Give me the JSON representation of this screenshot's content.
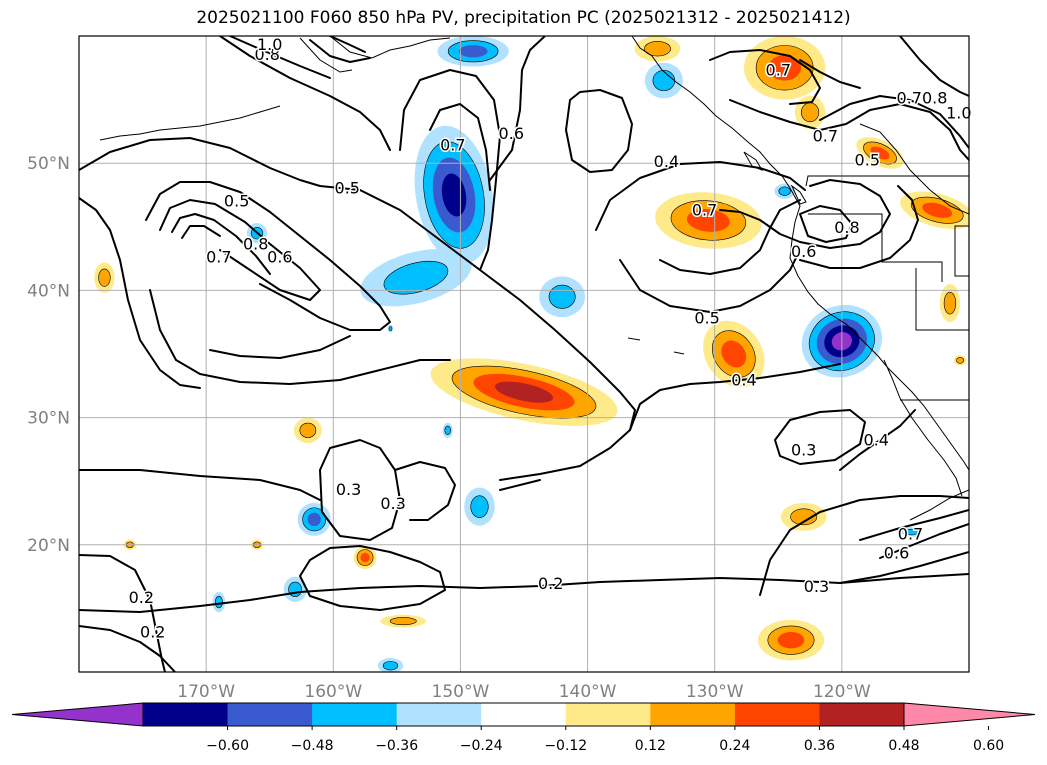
{
  "title": "2025021100 F060 850 hPa PV, precipitation PC (2025021312 - 2025021412)",
  "map": {
    "lon_min": -180,
    "lon_max": -110,
    "lat_min": 10,
    "lat_max": 60,
    "lat_labels": [
      "20°N",
      "30°N",
      "40°N",
      "50°N"
    ],
    "lat_values": [
      20,
      30,
      40,
      50
    ],
    "lon_labels": [
      "170°W",
      "160°W",
      "150°W",
      "140°W",
      "130°W",
      "120°W"
    ],
    "lon_values": [
      -170,
      -160,
      -150,
      -140,
      -130,
      -120
    ]
  },
  "contour_labels": [
    {
      "text": "0.2",
      "lon": -142.9,
      "lat": 16.9
    },
    {
      "text": "0.2",
      "lon": -175.1,
      "lat": 15.8
    },
    {
      "text": "0.2",
      "lon": -174.2,
      "lat": 13.1
    },
    {
      "text": "0.3",
      "lon": -155.3,
      "lat": 23.2
    },
    {
      "text": "0.3",
      "lon": -158.8,
      "lat": 24.3
    },
    {
      "text": "0.3",
      "lon": -122.0,
      "lat": 16.7
    },
    {
      "text": "0.3",
      "lon": -123.0,
      "lat": 27.4
    },
    {
      "text": "0.4",
      "lon": -117.3,
      "lat": 28.2
    },
    {
      "text": "0.4",
      "lon": -127.7,
      "lat": 32.9
    },
    {
      "text": "0.4",
      "lon": -133.8,
      "lat": 50.1
    },
    {
      "text": "0.5",
      "lon": -130.6,
      "lat": 37.8
    },
    {
      "text": "0.5",
      "lon": -167.6,
      "lat": 47.0
    },
    {
      "text": "0.5",
      "lon": -158.9,
      "lat": 48.0
    },
    {
      "text": "0.5",
      "lon": -118.0,
      "lat": 50.2
    },
    {
      "text": "0.6",
      "lon": -164.2,
      "lat": 42.6
    },
    {
      "text": "0.6",
      "lon": -123.0,
      "lat": 43.0
    },
    {
      "text": "0.6",
      "lon": -115.7,
      "lat": 19.3
    },
    {
      "text": "0.6",
      "lon": -146.0,
      "lat": 52.3
    },
    {
      "text": "0.7",
      "lon": -169.0,
      "lat": 42.6
    },
    {
      "text": "0.7",
      "lon": -130.8,
      "lat": 46.3
    },
    {
      "text": "0.7",
      "lon": -114.6,
      "lat": 20.8
    },
    {
      "text": "0.7",
      "lon": -125.0,
      "lat": 57.3
    },
    {
      "text": "0.7",
      "lon": -121.3,
      "lat": 52.1
    },
    {
      "text": "0.7",
      "lon": -114.7,
      "lat": 55.1
    },
    {
      "text": "0.7",
      "lon": -150.6,
      "lat": 51.4
    },
    {
      "text": "0.8",
      "lon": -166.1,
      "lat": 43.6
    },
    {
      "text": "0.8",
      "lon": -119.6,
      "lat": 44.9
    },
    {
      "text": "0.8",
      "lon": -112.7,
      "lat": 55.1
    },
    {
      "text": "0.8",
      "lon": -165.2,
      "lat": 58.5
    },
    {
      "text": "1.0",
      "lon": -110.8,
      "lat": 53.9
    },
    {
      "text": "1.0",
      "lon": -165.0,
      "lat": 59.3
    }
  ],
  "colorbar": {
    "ticks": [
      "−0.60",
      "−0.48",
      "−0.36",
      "−0.24",
      "−0.12",
      "0.12",
      "0.24",
      "0.36",
      "0.48",
      "0.60"
    ],
    "colors": [
      "#9333cc",
      "#00008b",
      "#3a5bd0",
      "#00bfff",
      "#b0e2ff",
      "#ffffff",
      "#ffea8a",
      "#ffa500",
      "#ff4500",
      "#b22222",
      "#ff88a8"
    ],
    "under_color": "#9333cc",
    "over_color": "#ff88a8"
  },
  "precip_colors": {
    "p1": "#ffea8a",
    "p2": "#ffa500",
    "p3": "#ff4500",
    "p4": "#b22222",
    "n1": "#b0e2ff",
    "n2": "#00bfff",
    "n3": "#3a5bd0",
    "n4": "#00008b",
    "n5": "#9333cc"
  },
  "precip_blobs": [
    {
      "lon": -145.0,
      "lat": 32.0,
      "rx": 7.5,
      "ry": 2.2,
      "rot": 12,
      "levels": [
        "p1",
        "p2",
        "p3",
        "p4"
      ]
    },
    {
      "lon": -130.5,
      "lat": 45.5,
      "rx": 4.2,
      "ry": 2.2,
      "rot": 5,
      "levels": [
        "p1",
        "p2",
        "p3"
      ]
    },
    {
      "lon": -124.5,
      "lat": 57.5,
      "rx": 3.2,
      "ry": 2.5,
      "rot": 0,
      "levels": [
        "p1",
        "p2",
        "p3"
      ]
    },
    {
      "lon": -128.5,
      "lat": 35.0,
      "rx": 2.2,
      "ry": 2.8,
      "rot": -35,
      "levels": [
        "p1",
        "p2",
        "p3"
      ]
    },
    {
      "lon": -124.0,
      "lat": 12.5,
      "rx": 2.6,
      "ry": 1.6,
      "rot": 0,
      "levels": [
        "p1",
        "p2",
        "p3"
      ]
    },
    {
      "lon": -123.0,
      "lat": 22.2,
      "rx": 1.8,
      "ry": 1.1,
      "rot": 0,
      "levels": [
        "p1",
        "p2"
      ]
    },
    {
      "lon": -112.5,
      "lat": 46.3,
      "rx": 3.0,
      "ry": 1.3,
      "rot": 15,
      "levels": [
        "p1",
        "p2",
        "p3"
      ]
    },
    {
      "lon": -117.0,
      "lat": 50.8,
      "rx": 2.0,
      "ry": 1.0,
      "rot": 25,
      "levels": [
        "p1",
        "p2",
        "p3"
      ]
    },
    {
      "lon": -122.5,
      "lat": 54.0,
      "rx": 1.2,
      "ry": 1.3,
      "rot": 0,
      "levels": [
        "p1",
        "p2"
      ]
    },
    {
      "lon": -134.5,
      "lat": 59.0,
      "rx": 1.8,
      "ry": 1.0,
      "rot": 0,
      "levels": [
        "p1",
        "p2"
      ]
    },
    {
      "lon": -162.0,
      "lat": 29.0,
      "rx": 1.1,
      "ry": 1.0,
      "rot": 0,
      "levels": [
        "p1",
        "p2"
      ]
    },
    {
      "lon": -157.5,
      "lat": 19.0,
      "rx": 0.9,
      "ry": 0.9,
      "rot": 0,
      "levels": [
        "p1",
        "p2",
        "p3"
      ]
    },
    {
      "lon": -154.5,
      "lat": 14.0,
      "rx": 1.8,
      "ry": 0.5,
      "rot": 0,
      "levels": [
        "p1",
        "p2"
      ]
    },
    {
      "lon": -111.5,
      "lat": 39.0,
      "rx": 0.8,
      "ry": 1.5,
      "rot": 0,
      "levels": [
        "p1",
        "p2"
      ]
    },
    {
      "lon": -178.0,
      "lat": 41.0,
      "rx": 0.8,
      "ry": 1.2,
      "rot": 0,
      "levels": [
        "p1",
        "p2"
      ]
    },
    {
      "lon": -176.0,
      "lat": 20.0,
      "rx": 0.5,
      "ry": 0.4,
      "rot": 0,
      "levels": [
        "p1",
        "p2"
      ]
    },
    {
      "lon": -166.0,
      "lat": 20.0,
      "rx": 0.5,
      "ry": 0.4,
      "rot": 0,
      "levels": [
        "p1",
        "p2"
      ]
    },
    {
      "lon": -110.7,
      "lat": 34.5,
      "rx": 0.5,
      "ry": 0.4,
      "rot": 0,
      "levels": [
        "p1",
        "p2"
      ]
    },
    {
      "lon": -150.5,
      "lat": 47.5,
      "rx": 3.0,
      "ry": 5.5,
      "rot": -10,
      "levels": [
        "n1",
        "n2",
        "n3",
        "n4"
      ]
    },
    {
      "lon": -120.0,
      "lat": 36.0,
      "rx": 3.2,
      "ry": 2.8,
      "rot": -20,
      "levels": [
        "n1",
        "n2",
        "n3",
        "n4",
        "n5"
      ]
    },
    {
      "lon": -153.5,
      "lat": 41.0,
      "rx": 4.5,
      "ry": 2.0,
      "rot": -15,
      "levels": [
        "n1",
        "n2"
      ]
    },
    {
      "lon": -142.0,
      "lat": 39.5,
      "rx": 1.8,
      "ry": 1.6,
      "rot": 0,
      "levels": [
        "n1",
        "n2"
      ]
    },
    {
      "lon": -149.0,
      "lat": 58.8,
      "rx": 2.8,
      "ry": 1.2,
      "rot": 0,
      "levels": [
        "n1",
        "n2",
        "n3"
      ]
    },
    {
      "lon": -134.0,
      "lat": 56.5,
      "rx": 1.5,
      "ry": 1.4,
      "rot": 0,
      "levels": [
        "n1",
        "n2"
      ]
    },
    {
      "lon": -161.5,
      "lat": 22.0,
      "rx": 1.3,
      "ry": 1.3,
      "rot": 0,
      "levels": [
        "n1",
        "n2",
        "n3"
      ]
    },
    {
      "lon": -148.5,
      "lat": 23.0,
      "rx": 1.2,
      "ry": 1.5,
      "rot": 0,
      "levels": [
        "n1",
        "n2"
      ]
    },
    {
      "lon": -163.0,
      "lat": 16.5,
      "rx": 0.9,
      "ry": 1.0,
      "rot": 0,
      "levels": [
        "n1",
        "n2"
      ]
    },
    {
      "lon": -166.0,
      "lat": 44.5,
      "rx": 0.8,
      "ry": 0.8,
      "rot": 0,
      "levels": [
        "n1",
        "n2"
      ]
    },
    {
      "lon": -155.5,
      "lat": 10.5,
      "rx": 1.0,
      "ry": 0.6,
      "rot": 0,
      "levels": [
        "n1",
        "n2"
      ]
    },
    {
      "lon": -169.0,
      "lat": 15.5,
      "rx": 0.5,
      "ry": 0.8,
      "rot": 0,
      "levels": [
        "n1",
        "n2"
      ]
    },
    {
      "lon": -114.5,
      "lat": 21.0,
      "rx": 0.8,
      "ry": 0.4,
      "rot": 0,
      "levels": [
        "n1",
        "n2"
      ]
    },
    {
      "lon": -124.5,
      "lat": 47.8,
      "rx": 0.8,
      "ry": 0.6,
      "rot": 0,
      "levels": [
        "n1",
        "n2"
      ]
    },
    {
      "lon": -151.0,
      "lat": 29.0,
      "rx": 0.4,
      "ry": 0.6,
      "rot": 0,
      "levels": [
        "n1",
        "n2"
      ]
    },
    {
      "lon": -155.5,
      "lat": 37.0,
      "rx": 0.2,
      "ry": 0.3,
      "rot": 0,
      "levels": [
        "n1",
        "n2"
      ]
    }
  ]
}
